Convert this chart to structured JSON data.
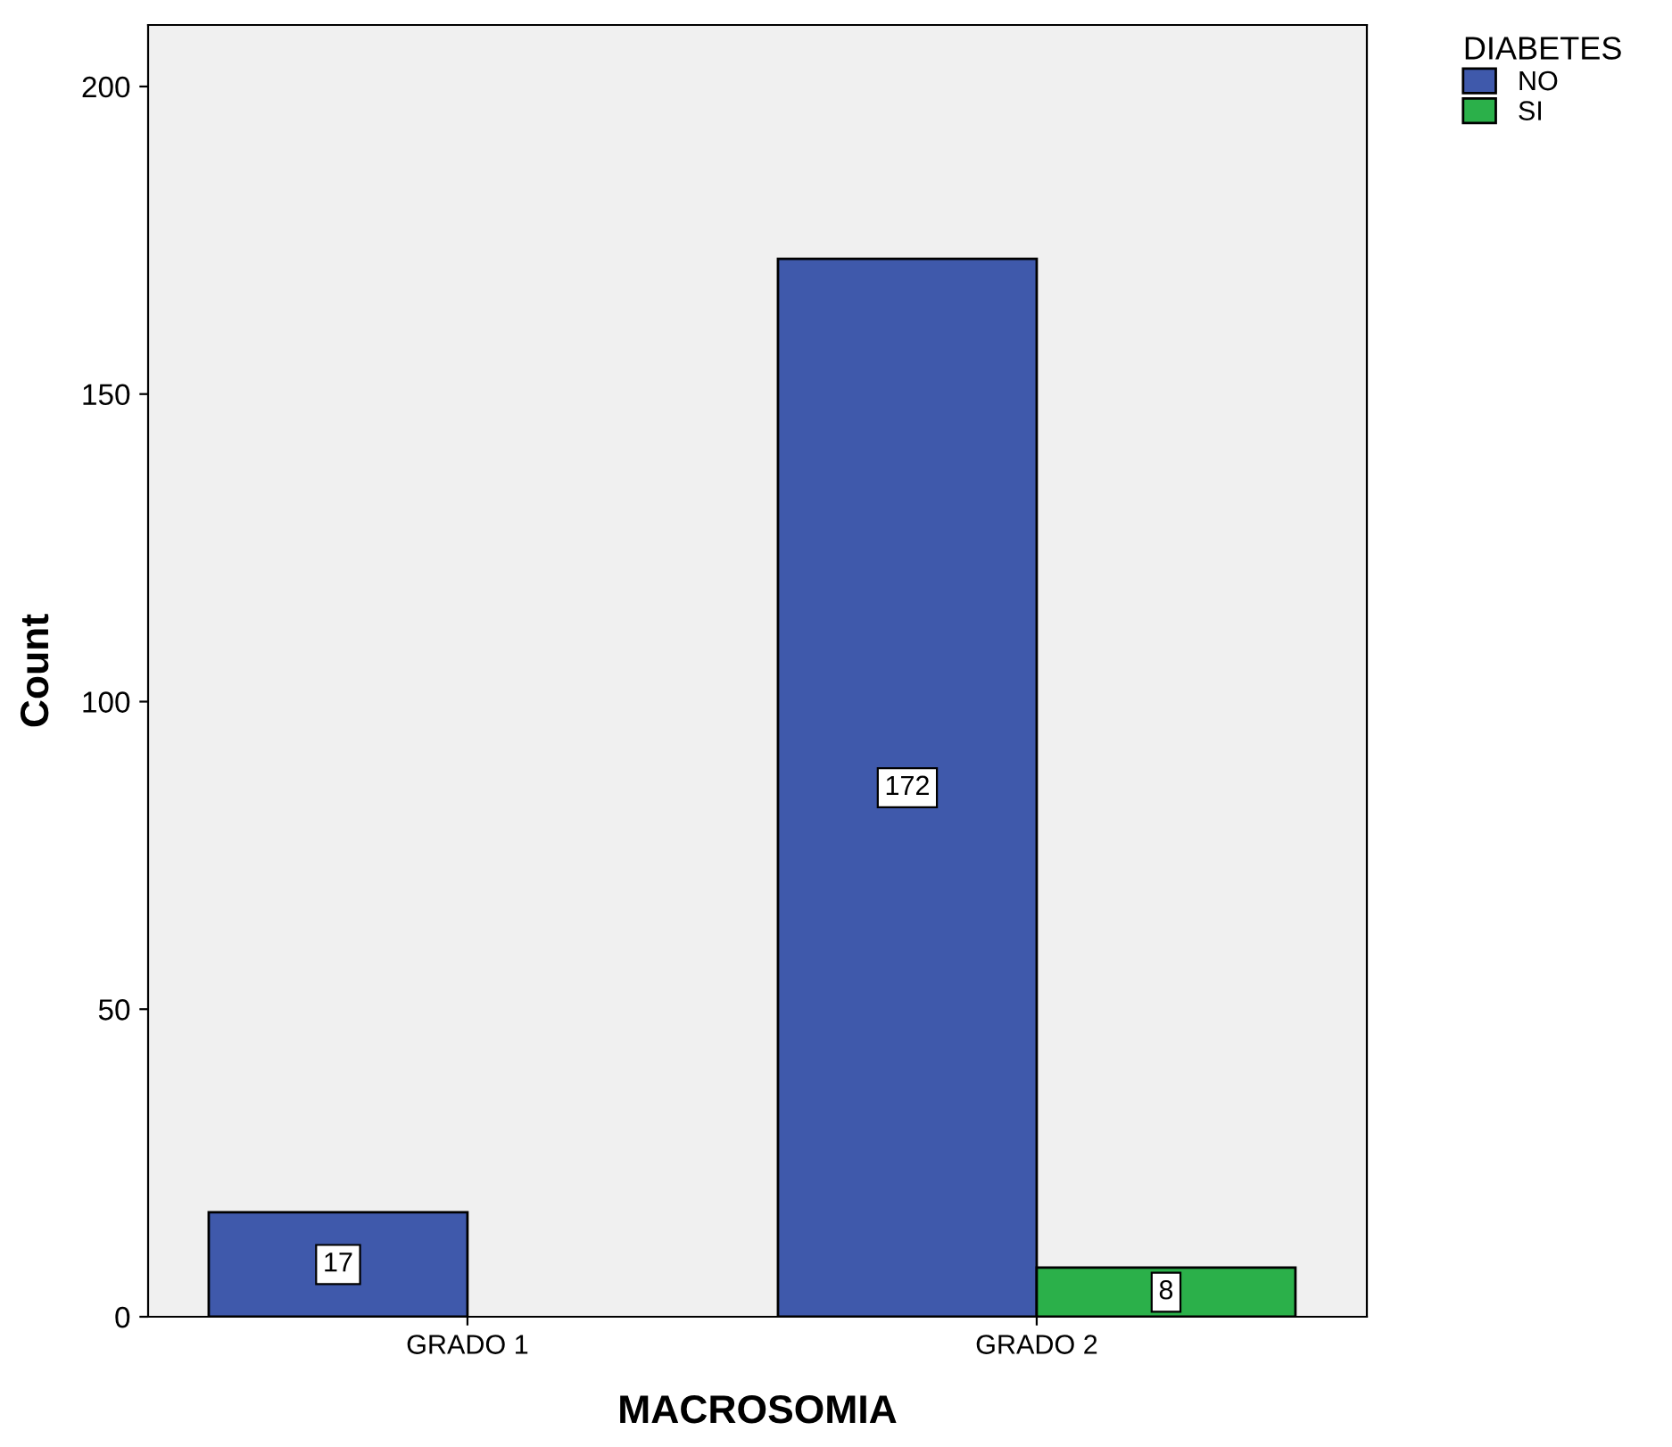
{
  "chart_data": {
    "type": "bar",
    "xlabel": "MACROSOMIA",
    "ylabel": "Count",
    "legend_title": "DIABETES",
    "categories": [
      "GRADO 1",
      "GRADO 2"
    ],
    "series": [
      {
        "name": "NO",
        "color": "#3f59ab",
        "values": [
          17,
          172
        ]
      },
      {
        "name": "SI",
        "color": "#2bb04a",
        "values": [
          null,
          8
        ]
      }
    ],
    "ylim": [
      0,
      210
    ],
    "yticks": [
      0,
      50,
      100,
      150,
      200
    ],
    "grid": false,
    "legend": "top right",
    "data_labels": true
  }
}
